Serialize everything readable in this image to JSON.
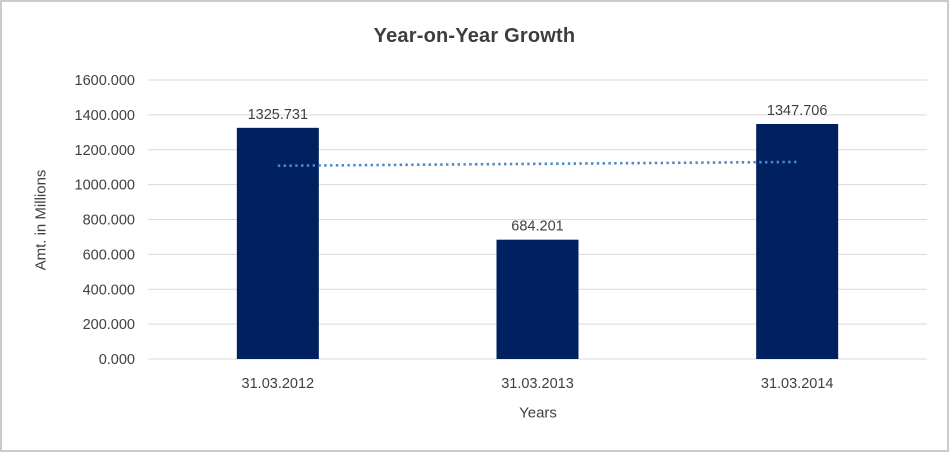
{
  "window": {
    "background": "#ffffff",
    "border_color": "#cbcbcb"
  },
  "chart_data": {
    "type": "bar",
    "title": "Year-on-Year Growth",
    "categories": [
      "31.03.2012",
      "31.03.2013",
      "31.03.2014"
    ],
    "values": [
      1325.731,
      684.201,
      1347.706
    ],
    "data_labels": [
      "1325.731",
      "684.201",
      "1347.706"
    ],
    "xlabel": "Years",
    "ylabel": "Amt. in Millions",
    "ylim": [
      0,
      1600
    ],
    "ytick_step": 200,
    "ytick_labels": [
      "0.000",
      "200.000",
      "400.000",
      "600.000",
      "800.000",
      "1000.000",
      "1200.000",
      "1400.000",
      "1600.000"
    ],
    "grid": true,
    "legend": false,
    "trendline": {
      "type": "linear_regression",
      "style": "dotted",
      "spans": "first_to_last_bar_center"
    },
    "colors": {
      "bar": "#002060",
      "trendline": "#4f87c5",
      "gridline": "#d9d9d9",
      "axis_line": "#d9d9d9",
      "text": "#404040",
      "title_text": "#3d3d3d"
    }
  }
}
